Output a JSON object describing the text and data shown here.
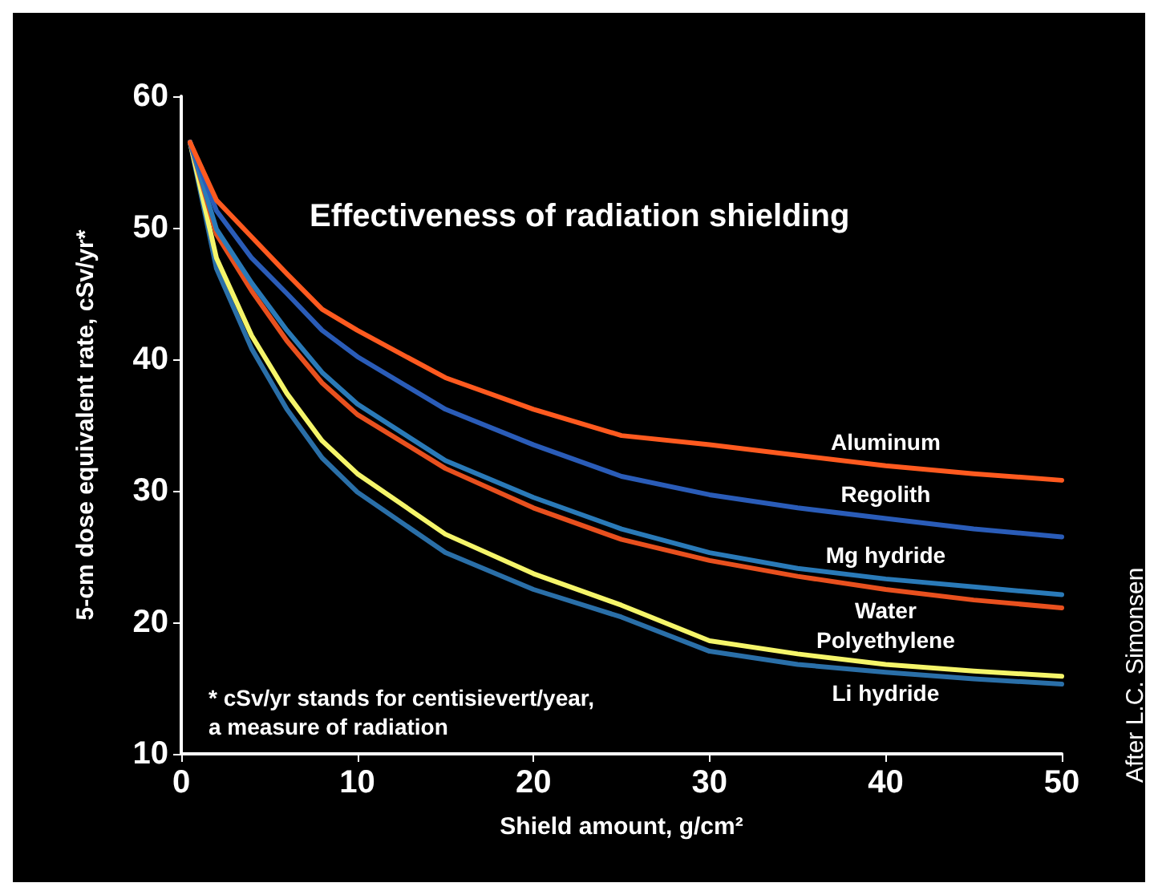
{
  "chart_data": {
    "type": "line",
    "title": "Effectiveness of radiation shielding",
    "xlabel": "Shield amount, g/cm²",
    "ylabel": "5-cm dose equivalent rate, cSv/yr*",
    "annotations": [
      "* cSv/yr stands for centisievert/year,\na measure of radiation",
      "After L.C. Simonsen"
    ],
    "x": [
      0.5,
      2,
      4,
      6,
      8,
      10,
      15,
      20,
      25,
      30,
      35,
      40,
      45,
      50
    ],
    "series": [
      {
        "name": "Aluminum",
        "color": "#ff5a1f",
        "values": [
          56.5,
          52.1,
          49.3,
          46.5,
          43.8,
          42.2,
          38.6,
          36.2,
          34.2,
          33.5,
          32.7,
          31.9,
          31.3,
          30.8
        ]
      },
      {
        "name": "Regolith",
        "color": "#2a5cb8",
        "values": [
          56.5,
          51.3,
          47.7,
          45.0,
          42.2,
          40.2,
          36.2,
          33.5,
          31.1,
          29.7,
          28.7,
          27.9,
          27.1,
          26.5
        ]
      },
      {
        "name": "Mg hydride",
        "color": "#2a7ab8",
        "values": [
          56.5,
          49.9,
          45.8,
          42.2,
          39.0,
          36.6,
          32.3,
          29.5,
          27.1,
          25.3,
          24.1,
          23.3,
          22.7,
          22.1
        ]
      },
      {
        "name": "Water",
        "color": "#e8501e",
        "values": [
          56.5,
          49.5,
          45.2,
          41.4,
          38.2,
          35.8,
          31.7,
          28.7,
          26.3,
          24.7,
          23.5,
          22.5,
          21.7,
          21.1
        ]
      },
      {
        "name": "Polyethylene",
        "color": "#f5f56a",
        "values": [
          56.5,
          47.7,
          41.8,
          37.4,
          33.8,
          31.3,
          26.7,
          23.7,
          21.3,
          18.6,
          17.6,
          16.8,
          16.3,
          15.9
        ]
      },
      {
        "name": "Li hydride",
        "color": "#2a6fa8",
        "values": [
          56.5,
          46.9,
          40.8,
          36.2,
          32.5,
          29.9,
          25.3,
          22.5,
          20.4,
          17.8,
          16.8,
          16.2,
          15.7,
          15.3
        ]
      }
    ],
    "xlim": [
      0,
      50
    ],
    "xticks": [
      0,
      10,
      20,
      30,
      40,
      50
    ],
    "ylim": [
      10,
      60
    ],
    "yticks": [
      10,
      20,
      30,
      40,
      50,
      60
    ],
    "grid": false,
    "legend": false,
    "marker": "none",
    "line_style": "solid"
  }
}
